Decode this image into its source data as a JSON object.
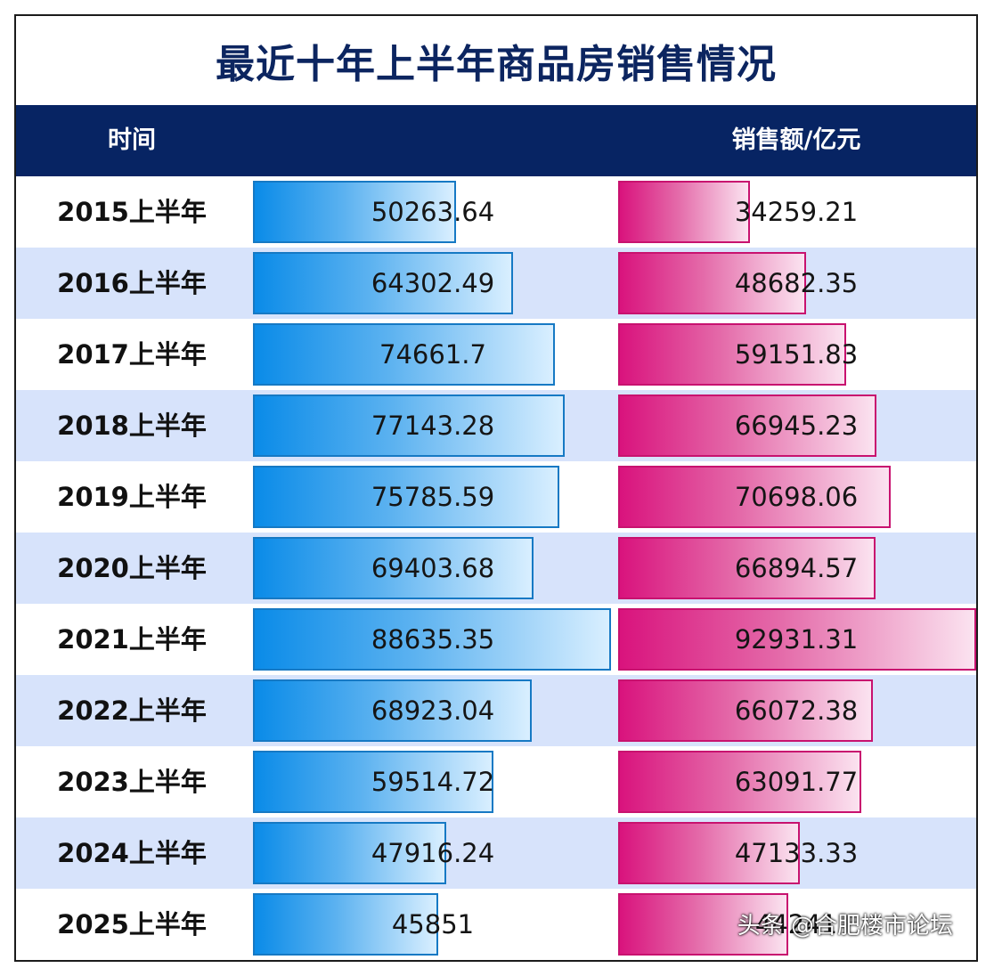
{
  "title": "最近十年上半年商品房销售情况",
  "header": {
    "time": "时间",
    "area": "",
    "amount": "销售额/亿元"
  },
  "watermark": "头条 @合肥楼市论坛",
  "colors": {
    "header_bg": "#072463",
    "title": "#0c2560",
    "row_alt": "#d7e3fb",
    "bar_area": "#0a8be8",
    "bar_amount": "#d9137d"
  },
  "chart_data": {
    "type": "bar",
    "title": "最近十年上半年商品房销售情况",
    "categories": [
      "2015上半年",
      "2016上半年",
      "2017上半年",
      "2018上半年",
      "2019上半年",
      "2020上半年",
      "2021上半年",
      "2022上半年",
      "2023上半年",
      "2024上半年",
      "2025上半年"
    ],
    "series": [
      {
        "name": "",
        "values": [
          50263.64,
          64302.49,
          74661.7,
          77143.28,
          75785.59,
          69403.68,
          88635.35,
          68923.04,
          59514.72,
          47916.24,
          45851
        ],
        "labels": [
          "50263.64",
          "64302.49",
          "74661.7",
          "77143.28",
          "75785.59",
          "69403.68",
          "88635.35",
          "68923.04",
          "59514.72",
          "47916.24",
          "45851"
        ]
      },
      {
        "name": "销售额/亿元",
        "values": [
          34259.21,
          48682.35,
          59151.83,
          66945.23,
          70698.06,
          66894.57,
          92931.31,
          66072.38,
          63091.77,
          47133.33,
          44241
        ],
        "labels": [
          "34259.21",
          "48682.35",
          "59151.83",
          "66945.23",
          "70698.06",
          "66894.57",
          "92931.31",
          "66072.38",
          "63091.77",
          "47133.33",
          "44241"
        ]
      }
    ],
    "legend": "none",
    "grid": false
  }
}
